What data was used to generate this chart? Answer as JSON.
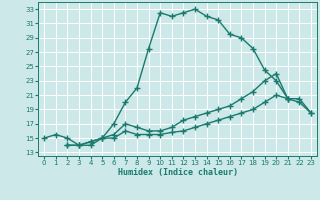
{
  "xlabel": "Humidex (Indice chaleur)",
  "xlim": [
    -0.5,
    23.5
  ],
  "ylim": [
    12.5,
    34.0
  ],
  "xticks": [
    0,
    1,
    2,
    3,
    4,
    5,
    6,
    7,
    8,
    9,
    10,
    11,
    12,
    13,
    14,
    15,
    16,
    17,
    18,
    19,
    20,
    21,
    22,
    23
  ],
  "yticks": [
    13,
    15,
    17,
    19,
    21,
    23,
    25,
    27,
    29,
    31,
    33
  ],
  "bg_color": "#cce8e8",
  "grid_color": "#ffffff",
  "line_color": "#1a7a6e",
  "line1_x": [
    0,
    1,
    2,
    3,
    4,
    5,
    6,
    7,
    8,
    9,
    10,
    11,
    12,
    13,
    14,
    15,
    16,
    17,
    18,
    19,
    20,
    21
  ],
  "line1_y": [
    15,
    15.5,
    15,
    14,
    14,
    15,
    17,
    20,
    22,
    27.5,
    32.5,
    32,
    32.5,
    33,
    32,
    31.5,
    29.5,
    29,
    27.5,
    24.5,
    23,
    20.5
  ],
  "line2_x": [
    2,
    3,
    4,
    5,
    6,
    7,
    8,
    9,
    10,
    11,
    12,
    13,
    14,
    15,
    16,
    17,
    18,
    19,
    20,
    21,
    22,
    23
  ],
  "line2_y": [
    14,
    14,
    14.5,
    15,
    15.5,
    17,
    16.5,
    16,
    16,
    16.5,
    17.5,
    18,
    18.5,
    19,
    19.5,
    20.5,
    21.5,
    23,
    24,
    20.5,
    20.5,
    18.5
  ],
  "line3_x": [
    2,
    3,
    4,
    5,
    6,
    7,
    8,
    9,
    10,
    11,
    12,
    13,
    14,
    15,
    16,
    17,
    18,
    19,
    20,
    21,
    22,
    23
  ],
  "line3_y": [
    14,
    14,
    14.5,
    15,
    15,
    16,
    15.5,
    15.5,
    15.5,
    15.8,
    16,
    16.5,
    17,
    17.5,
    18,
    18.5,
    19,
    20,
    21,
    20.5,
    20,
    18.5
  ],
  "markersize": 2.5,
  "linewidth": 1.0
}
